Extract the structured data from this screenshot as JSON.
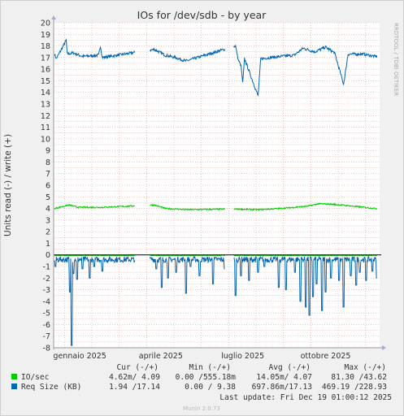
{
  "chart_data": {
    "type": "line",
    "title": "IOs for /dev/sdb - by year",
    "ylabel": "Units read (-) / write (+)",
    "watermark": "RRDTOOL / TOBI OETIKER",
    "footer": "Munin 2.0.73",
    "x_ticks": [
      "gennaio 2025",
      "aprile 2025",
      "luglio 2025",
      "ottobre 2025"
    ],
    "y_ticks": [
      "20",
      "19",
      "18",
      "17",
      "16",
      "15",
      "14",
      "13",
      "12",
      "11",
      "10",
      "9",
      "8",
      "7",
      "6",
      "5",
      "4",
      "3",
      "2",
      "1",
      "0",
      "-1",
      "-2",
      "-3",
      "-4",
      "-5",
      "-6",
      "-7",
      "-8"
    ],
    "ylim": [
      -8,
      20
    ],
    "x_range_days": [
      -12,
      350
    ],
    "x_tick_days": [
      17,
      107,
      198,
      290
    ],
    "grid": true,
    "gaps_days": [
      [
        78,
        95
      ],
      [
        178,
        188
      ]
    ],
    "series": [
      {
        "name": "Req Size (KB)",
        "color": "#0066b3",
        "write": {
          "level": 17.2,
          "noise": 0.25,
          "points": [
            [
              -11,
              17.3
            ],
            [
              -9,
              16.9
            ],
            [
              2,
              18.5
            ],
            [
              3,
              17.3
            ],
            [
              10,
              17.4
            ],
            [
              20,
              17.1
            ],
            [
              38,
              17.2
            ],
            [
              40,
              18.0
            ],
            [
              42,
              17.0
            ],
            [
              100,
              17.7
            ],
            [
              112,
              17.2
            ],
            [
              123,
              17.0
            ],
            [
              135,
              16.7
            ],
            [
              190,
              18.0
            ],
            [
              193,
              16.8
            ],
            [
              196,
              16.3
            ],
            [
              198,
              14.8
            ],
            [
              200,
              16.9
            ],
            [
              215,
              13.7
            ],
            [
              218,
              16.9
            ],
            [
              240,
              17.1
            ],
            [
              255,
              17.2
            ],
            [
              265,
              17.8
            ],
            [
              278,
              17.5
            ],
            [
              290,
              17.9
            ],
            [
              300,
              17.4
            ],
            [
              310,
              14.7
            ],
            [
              315,
              17.3
            ],
            [
              332,
              17.3
            ],
            [
              345,
              17.1
            ]
          ]
        },
        "read": {
          "level": -0.4,
          "spikes": [
            [
              -10,
              -1.0
            ],
            [
              6,
              -3.2
            ],
            [
              8,
              -7.8
            ],
            [
              10,
              -1.6
            ],
            [
              14,
              -2.1
            ],
            [
              20,
              -1.2
            ],
            [
              28,
              -2.0
            ],
            [
              33,
              -1.0
            ],
            [
              42,
              -1.4
            ],
            [
              102,
              -1.2
            ],
            [
              108,
              -2.8
            ],
            [
              115,
              -2.0
            ],
            [
              124,
              -1.5
            ],
            [
              135,
              -3.3
            ],
            [
              140,
              -1.0
            ],
            [
              150,
              -1.8
            ],
            [
              165,
              -2.5
            ],
            [
              178,
              -1.2
            ],
            [
              190,
              -3.5
            ],
            [
              196,
              -1.8
            ],
            [
              205,
              -2.2
            ],
            [
              215,
              -1.5
            ],
            [
              222,
              -1.0
            ],
            [
              238,
              -2.8
            ],
            [
              246,
              -3.0
            ],
            [
              256,
              -1.5
            ],
            [
              262,
              -4.0
            ],
            [
              268,
              -4.5
            ],
            [
              272,
              -5.2
            ],
            [
              276,
              -3.6
            ],
            [
              280,
              -2.5
            ],
            [
              286,
              -4.8
            ],
            [
              290,
              -3.2
            ],
            [
              296,
              -2.0
            ],
            [
              305,
              -2.2
            ],
            [
              310,
              -4.5
            ],
            [
              318,
              -1.8
            ],
            [
              324,
              -2.6
            ],
            [
              328,
              -1.5
            ],
            [
              335,
              -2.2
            ],
            [
              342,
              -1.4
            ],
            [
              347,
              -2.0
            ]
          ]
        }
      },
      {
        "name": "IO/sec",
        "color": "#00cc00",
        "write": {
          "level": 4.0,
          "points": [
            [
              -11,
              4.0
            ],
            [
              5,
              4.3
            ],
            [
              15,
              4.1
            ],
            [
              42,
              4.1
            ],
            [
              100,
              4.3
            ],
            [
              112,
              4.0
            ],
            [
              135,
              3.9
            ],
            [
              190,
              3.95
            ],
            [
              215,
              3.9
            ],
            [
              240,
              4.0
            ],
            [
              270,
              4.2
            ],
            [
              282,
              4.4
            ],
            [
              300,
              4.35
            ],
            [
              320,
              4.2
            ],
            [
              345,
              4.0
            ]
          ]
        },
        "read": {
          "level": -0.05
        }
      }
    ]
  },
  "legend": {
    "headers": {
      "cur": "Cur (-/+)",
      "min": "Min (-/+)",
      "avg": "Avg (-/+)",
      "max": "Max (-/+)"
    },
    "rows": [
      {
        "label": "IO/sec",
        "color": "#00cc00",
        "cur": "4.62m/ 4.09",
        "min": "0.00 /555.18m",
        "avg": "14.05m/ 4.07",
        "max": "81.30 /43.62"
      },
      {
        "label": "Req Size (KB)",
        "color": "#0066b3",
        "cur": "1.94 /17.14",
        "min": "0.00 / 9.38",
        "avg": "697.86m/17.13",
        "max": "469.19 /228.93"
      }
    ],
    "last_update": "Last update: Fri Dec 19 01:00:12 2025"
  }
}
